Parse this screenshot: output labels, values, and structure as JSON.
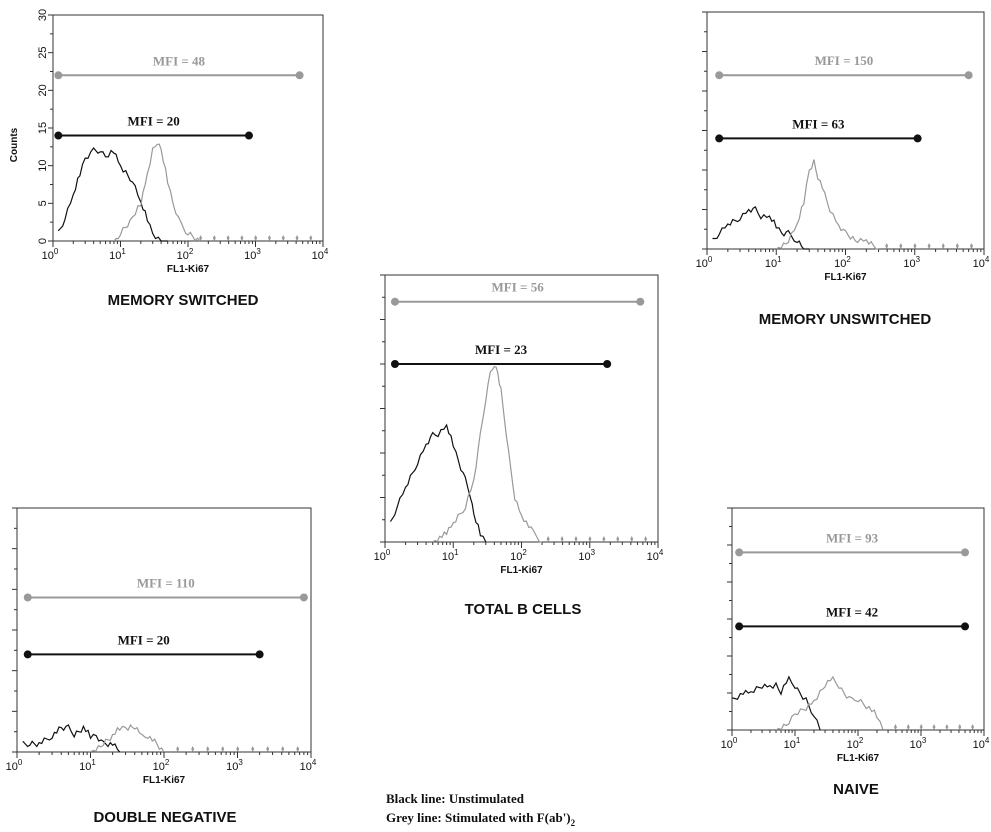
{
  "colors": {
    "unstimulated": "#111111",
    "stimulated": "#999999",
    "axis": "#333333"
  },
  "legend": {
    "black_line": "Black line: Unstimulated",
    "grey_line_text": "Grey line: Stimulated with F(ab')",
    "grey_line_subscript": "2"
  },
  "chart_data": [
    {
      "type": "histogram",
      "title": "MEMORY SWITCHED",
      "xlabel": "FL1-Ki67",
      "ylabel": "Counts",
      "x_scale": "log",
      "xlim": [
        1,
        10000
      ],
      "ylim": [
        0,
        30
      ],
      "y_ticks": [
        "0",
        "5",
        "10",
        "15",
        "20",
        "25",
        "30"
      ],
      "x_ticks": [
        "10",
        "10",
        "10",
        "10",
        "10"
      ],
      "x_tick_exponents": [
        "0",
        "1",
        "2",
        "3",
        "4"
      ],
      "markers": [
        {
          "series": "stimulated",
          "label": "MFI = 48",
          "value": 48,
          "x_range": [
            1.2,
            4500
          ],
          "y": 22
        },
        {
          "series": "unstimulated",
          "label": "MFI = 20",
          "value": 20,
          "x_range": [
            1.2,
            800
          ],
          "y": 14
        }
      ],
      "series": [
        {
          "id": "unstimulated",
          "x": [
            1.2,
            1.5,
            2,
            2.5,
            3,
            4,
            5,
            6,
            8,
            10,
            12,
            15,
            20,
            25,
            30,
            40,
            50
          ],
          "y": [
            1,
            3,
            6,
            9,
            11,
            12,
            12,
            11,
            12,
            10,
            9,
            8,
            5,
            3,
            1,
            0,
            0
          ]
        },
        {
          "id": "stimulated",
          "x": [
            8,
            10,
            15,
            20,
            25,
            30,
            35,
            40,
            50,
            60,
            80,
            100,
            150
          ],
          "y": [
            0,
            1,
            3,
            5,
            9,
            12,
            13,
            12,
            8,
            5,
            2,
            1,
            0
          ]
        }
      ]
    },
    {
      "type": "histogram",
      "title": "MEMORY UNSWITCHED",
      "xlabel": "FL1-Ki67",
      "x_scale": "log",
      "xlim": [
        1,
        10000
      ],
      "ylim": [
        0,
        30
      ],
      "x_ticks": [
        "10",
        "10",
        "10",
        "10",
        "10"
      ],
      "x_tick_exponents": [
        "0",
        "1",
        "2",
        "3",
        "4"
      ],
      "markers": [
        {
          "series": "stimulated",
          "label": "MFI = 150",
          "value": 150,
          "x_range": [
            1.5,
            6000
          ],
          "y": 22
        },
        {
          "series": "unstimulated",
          "label": "MFI = 63",
          "value": 63,
          "x_range": [
            1.5,
            1100
          ],
          "y": 14
        }
      ],
      "series": [
        {
          "id": "unstimulated",
          "x": [
            1.2,
            1.5,
            2,
            3,
            4,
            5,
            6,
            8,
            10,
            12,
            15,
            20,
            25,
            30
          ],
          "y": [
            1,
            2,
            3,
            4,
            5,
            5,
            4,
            4,
            3,
            2,
            2,
            1,
            0,
            0
          ]
        },
        {
          "id": "stimulated",
          "x": [
            10,
            15,
            20,
            25,
            30,
            35,
            40,
            50,
            60,
            80,
            100,
            150,
            200,
            300
          ],
          "y": [
            0,
            1,
            3,
            6,
            10,
            11,
            9,
            7,
            5,
            3,
            2,
            1,
            1,
            0
          ]
        }
      ]
    },
    {
      "type": "histogram",
      "title": "TOTAL B CELLS",
      "xlabel": "FL1-Ki67",
      "x_scale": "log",
      "xlim": [
        1,
        10000
      ],
      "ylim": [
        0,
        30
      ],
      "x_ticks": [
        "10",
        "10",
        "10",
        "10",
        "10"
      ],
      "x_tick_exponents": [
        "0",
        "1",
        "2",
        "3",
        "4"
      ],
      "markers": [
        {
          "series": "stimulated",
          "label": "MFI = 56",
          "value": 56,
          "x_range": [
            1.4,
            5500
          ],
          "y": 27
        },
        {
          "series": "unstimulated",
          "label": "MFI = 23",
          "value": 23,
          "x_range": [
            1.4,
            1800
          ],
          "y": 20
        }
      ],
      "series": [
        {
          "id": "unstimulated",
          "x": [
            1.2,
            1.5,
            2,
            3,
            4,
            5,
            6,
            8,
            10,
            12,
            15,
            18,
            20,
            25,
            30
          ],
          "y": [
            2,
            4,
            6,
            9,
            11,
            12,
            12,
            13,
            11,
            9,
            7,
            5,
            3,
            1,
            0
          ]
        },
        {
          "id": "stimulated",
          "x": [
            5,
            8,
            10,
            15,
            20,
            25,
            30,
            35,
            40,
            45,
            50,
            60,
            70,
            80,
            100,
            150,
            200
          ],
          "y": [
            0,
            1,
            2,
            4,
            7,
            12,
            16,
            19,
            20,
            19,
            17,
            12,
            8,
            5,
            3,
            1,
            0
          ]
        }
      ]
    },
    {
      "type": "histogram",
      "title": "DOUBLE NEGATIVE",
      "xlabel": "FL1-Ki67",
      "x_scale": "log",
      "xlim": [
        1,
        10000
      ],
      "ylim": [
        0,
        30
      ],
      "x_ticks": [
        "10",
        "10",
        "10",
        "10",
        "10"
      ],
      "x_tick_exponents": [
        "0",
        "1",
        "2",
        "3",
        "4"
      ],
      "markers": [
        {
          "series": "stimulated",
          "label": "MFI = 110",
          "value": 110,
          "x_range": [
            1.4,
            8000
          ],
          "y": 19
        },
        {
          "series": "unstimulated",
          "label": "MFI = 20",
          "value": 20,
          "x_range": [
            1.4,
            2000
          ],
          "y": 12
        }
      ],
      "series": [
        {
          "id": "unstimulated",
          "x": [
            1.2,
            1.5,
            2,
            3,
            4,
            5,
            6,
            8,
            10,
            12,
            15,
            20,
            25
          ],
          "y": [
            1,
            1,
            1,
            2,
            3,
            3,
            2,
            3,
            2,
            2,
            1,
            1,
            0
          ]
        },
        {
          "id": "stimulated",
          "x": [
            10,
            15,
            20,
            25,
            30,
            35,
            40,
            50,
            60,
            80,
            100
          ],
          "y": [
            0,
            1,
            2,
            3,
            3,
            3,
            3,
            2,
            2,
            1,
            0
          ]
        }
      ]
    },
    {
      "type": "histogram",
      "title": "NAIVE",
      "xlabel": "FL1-Ki67",
      "x_scale": "log",
      "xlim": [
        1,
        10000
      ],
      "ylim": [
        0,
        30
      ],
      "x_ticks": [
        "10",
        "10",
        "10",
        "10",
        "10"
      ],
      "x_tick_exponents": [
        "0",
        "1",
        "2",
        "3",
        "4"
      ],
      "markers": [
        {
          "series": "stimulated",
          "label": "MFI = 93",
          "value": 93,
          "x_range": [
            1.3,
            5000
          ],
          "y": 24
        },
        {
          "series": "unstimulated",
          "label": "MFI = 42",
          "value": 42,
          "x_range": [
            1.3,
            5000
          ],
          "y": 14
        }
      ],
      "series": [
        {
          "id": "unstimulated",
          "x": [
            1,
            1.5,
            2,
            3,
            4,
            5,
            6,
            8,
            10,
            12,
            15,
            20,
            25
          ],
          "y": [
            4,
            5,
            5,
            6,
            6,
            6,
            5,
            7,
            6,
            5,
            4,
            2,
            0
          ]
        },
        {
          "id": "stimulated",
          "x": [
            5,
            8,
            10,
            15,
            20,
            25,
            30,
            40,
            50,
            60,
            80,
            100,
            150,
            200,
            250
          ],
          "y": [
            0,
            1,
            2,
            3,
            4,
            5,
            6,
            7,
            6,
            5,
            4,
            4,
            3,
            2,
            0
          ]
        }
      ]
    }
  ]
}
